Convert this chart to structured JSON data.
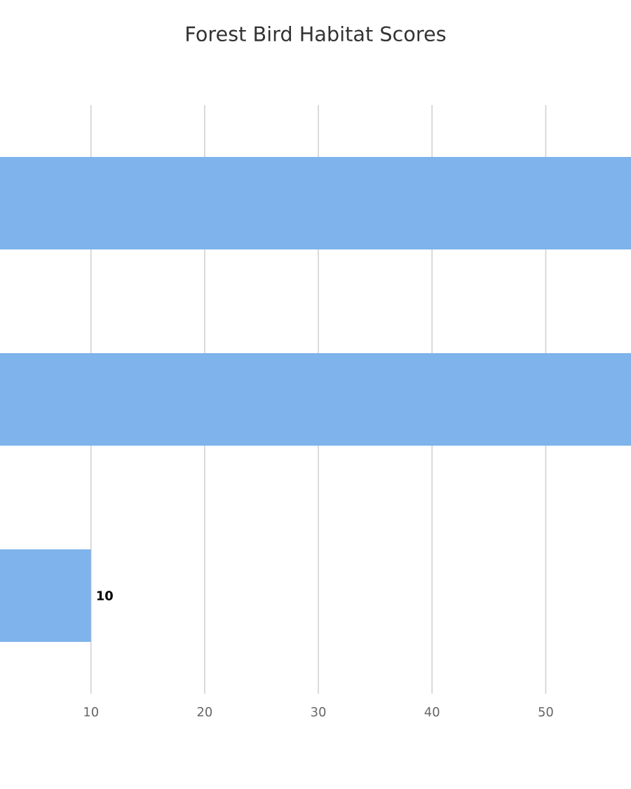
{
  "chart_data": {
    "type": "bar",
    "orientation": "horizontal",
    "title": "Forest Bird Habitat Scores",
    "categories": [
      null,
      null,
      null
    ],
    "values": [
      57.5,
      57.5,
      10
    ],
    "value_labels": [
      null,
      null,
      "10"
    ],
    "color": "#7eb3eb",
    "xlim": [
      2,
      57.5
    ],
    "xticks": [
      10,
      20,
      30,
      40,
      50
    ],
    "grid": "x"
  }
}
